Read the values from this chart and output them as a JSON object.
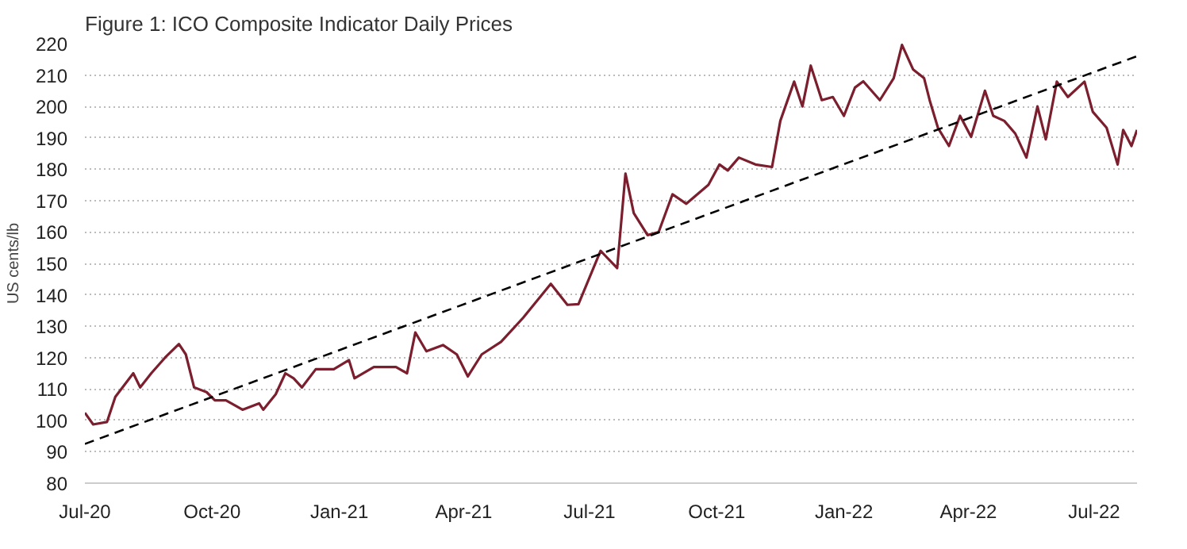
{
  "chart_data": {
    "type": "line",
    "title": "Figure 1: ICO Composite Indicator Daily Prices",
    "ylabel": "US cents/lb",
    "xlim": [
      "2020-07-01",
      "2022-08-01"
    ],
    "ylim": [
      80,
      220
    ],
    "yticks": [
      80,
      90,
      100,
      110,
      120,
      130,
      140,
      150,
      160,
      170,
      180,
      190,
      200,
      210,
      220
    ],
    "xticks": [
      {
        "value": "2020-07-01",
        "label": "Jul-20"
      },
      {
        "value": "2020-10-01",
        "label": "Oct-20"
      },
      {
        "value": "2021-01-01",
        "label": "Jan-21"
      },
      {
        "value": "2021-04-01",
        "label": "Apr-21"
      },
      {
        "value": "2021-07-01",
        "label": "Jul-21"
      },
      {
        "value": "2021-10-01",
        "label": "Oct-21"
      },
      {
        "value": "2022-01-01",
        "label": "Jan-22"
      },
      {
        "value": "2022-04-01",
        "label": "Apr-22"
      },
      {
        "value": "2022-07-01",
        "label": "Jul-22"
      }
    ],
    "grid": "y",
    "series": [
      {
        "color": "#7b1e2e",
        "line_style": "solid",
        "x": [
          "2020-07-01",
          "2020-07-07",
          "2020-07-17",
          "2020-07-23",
          "2020-08-05",
          "2020-08-10",
          "2020-08-18",
          "2020-08-28",
          "2020-09-07",
          "2020-09-12",
          "2020-09-18",
          "2020-09-27",
          "2020-10-03",
          "2020-10-11",
          "2020-10-23",
          "2020-11-04",
          "2020-11-07",
          "2020-11-16",
          "2020-11-23",
          "2020-11-29",
          "2020-12-05",
          "2020-12-15",
          "2020-12-28",
          "2021-01-08",
          "2021-01-12",
          "2021-01-26",
          "2021-02-11",
          "2021-02-19",
          "2021-02-25",
          "2021-03-05",
          "2021-03-17",
          "2021-03-27",
          "2021-04-04",
          "2021-04-14",
          "2021-04-28",
          "2021-05-14",
          "2021-06-03",
          "2021-06-15",
          "2021-06-23",
          "2021-07-09",
          "2021-07-21",
          "2021-07-27",
          "2021-08-02",
          "2021-08-12",
          "2021-08-20",
          "2021-08-30",
          "2021-09-09",
          "2021-09-25",
          "2021-10-03",
          "2021-10-09",
          "2021-10-17",
          "2021-10-29",
          "2021-11-10",
          "2021-11-16",
          "2021-11-26",
          "2021-12-02",
          "2021-12-08",
          "2021-12-16",
          "2021-12-24",
          "2022-01-01",
          "2022-01-09",
          "2022-01-15",
          "2022-01-27",
          "2022-02-06",
          "2022-02-12",
          "2022-02-20",
          "2022-02-28",
          "2022-03-04",
          "2022-03-10",
          "2022-03-18",
          "2022-03-26",
          "2022-04-03",
          "2022-04-13",
          "2022-04-19",
          "2022-04-27",
          "2022-05-05",
          "2022-05-13",
          "2022-05-21",
          "2022-05-27",
          "2022-06-04",
          "2022-06-12",
          "2022-06-24",
          "2022-06-30",
          "2022-07-10",
          "2022-07-18",
          "2022-07-22",
          "2022-07-28",
          "2022-08-01"
        ],
        "values": [
          102.4,
          98.7,
          99.5,
          107.5,
          115,
          110.5,
          115,
          120,
          124.3,
          121,
          110.5,
          109,
          106.4,
          106.4,
          103.4,
          105.4,
          103.4,
          108.3,
          115,
          113.4,
          110.5,
          116.3,
          116.3,
          119.2,
          113.4,
          117,
          117,
          115,
          128,
          122,
          124,
          121,
          114,
          121,
          125,
          132.7,
          143.5,
          136.8,
          137,
          154,
          148.5,
          178.6,
          166,
          159,
          160,
          172,
          169,
          175,
          181.5,
          179.6,
          183.7,
          181.5,
          180.7,
          195.4,
          207.9,
          200,
          213,
          202,
          203,
          197,
          206,
          208,
          202,
          209,
          219.6,
          211.8,
          209,
          202,
          193.2,
          187.4,
          197,
          190.3,
          205,
          197,
          195.4,
          191.3,
          183.7,
          200,
          189.5,
          207.9,
          203,
          207.9,
          198.3,
          193.2,
          181.5,
          192.5,
          187.4,
          192.5
        ]
      },
      {
        "color": "#000000",
        "line_style": "dashed",
        "x": [
          "2020-07-01",
          "2022-08-01"
        ],
        "values": [
          92.5,
          216
        ]
      }
    ]
  }
}
